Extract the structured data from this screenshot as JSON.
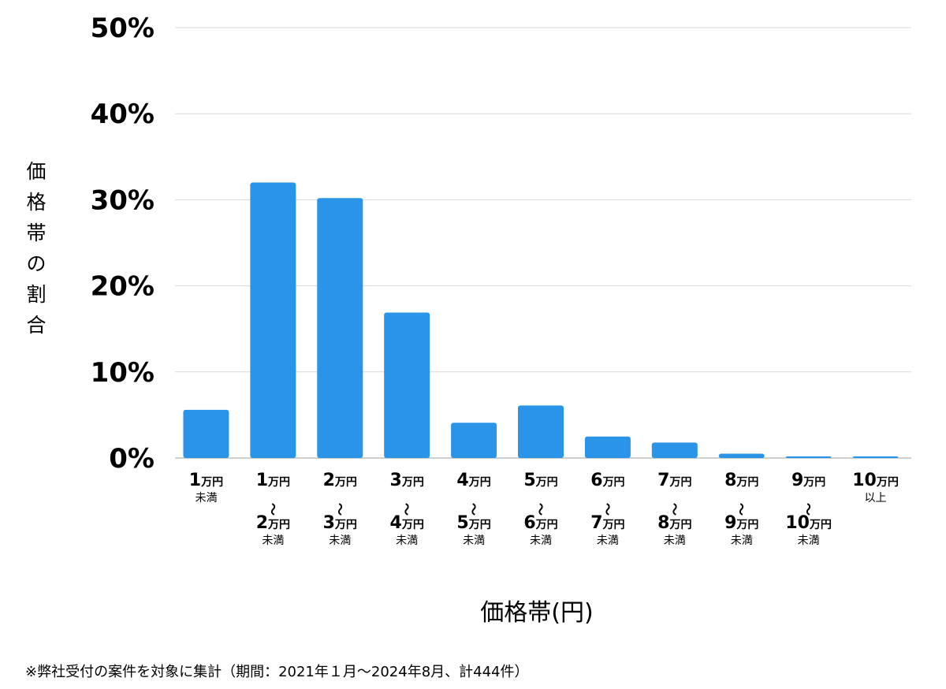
{
  "chart_data": {
    "type": "bar",
    "ylabel": "価格帯の割合",
    "xlabel": "価格帯(円)",
    "yticks": [
      "0%",
      "10%",
      "20%",
      "30%",
      "40%",
      "50%"
    ],
    "ylim": [
      0,
      50
    ],
    "grid": true,
    "bar_color": "#2a95e8",
    "categories": [
      {
        "lines": [
          {
            "num": "1",
            "unit": "万円"
          }
        ],
        "suffix": "未満"
      },
      {
        "lines": [
          {
            "num": "1",
            "unit": "万円"
          },
          {
            "num": "2",
            "unit": "万円"
          }
        ],
        "separator": "〜",
        "suffix": "未満"
      },
      {
        "lines": [
          {
            "num": "2",
            "unit": "万円"
          },
          {
            "num": "3",
            "unit": "万円"
          }
        ],
        "separator": "〜",
        "suffix": "未満"
      },
      {
        "lines": [
          {
            "num": "3",
            "unit": "万円"
          },
          {
            "num": "4",
            "unit": "万円"
          }
        ],
        "separator": "〜",
        "suffix": "未満"
      },
      {
        "lines": [
          {
            "num": "4",
            "unit": "万円"
          },
          {
            "num": "5",
            "unit": "万円"
          }
        ],
        "separator": "〜",
        "suffix": "未満"
      },
      {
        "lines": [
          {
            "num": "5",
            "unit": "万円"
          },
          {
            "num": "6",
            "unit": "万円"
          }
        ],
        "separator": "〜",
        "suffix": "未満"
      },
      {
        "lines": [
          {
            "num": "6",
            "unit": "万円"
          },
          {
            "num": "7",
            "unit": "万円"
          }
        ],
        "separator": "〜",
        "suffix": "未満"
      },
      {
        "lines": [
          {
            "num": "7",
            "unit": "万円"
          },
          {
            "num": "8",
            "unit": "万円"
          }
        ],
        "separator": "〜",
        "suffix": "未満"
      },
      {
        "lines": [
          {
            "num": "8",
            "unit": "万円"
          },
          {
            "num": "9",
            "unit": "万円"
          }
        ],
        "separator": "〜",
        "suffix": "未満"
      },
      {
        "lines": [
          {
            "num": "9",
            "unit": "万円"
          },
          {
            "num": "10",
            "unit": "万円"
          }
        ],
        "separator": "〜",
        "suffix": "未満"
      },
      {
        "lines": [
          {
            "num": "10",
            "unit": "万円"
          }
        ],
        "suffix": "以上"
      }
    ],
    "values": [
      5.6,
      32.0,
      30.2,
      16.9,
      4.1,
      6.1,
      2.5,
      1.8,
      0.5,
      0.2,
      0.2
    ]
  },
  "footnote": "※弊社受付の案件を対象に集計（期間：2021年１月〜2024年8月、計444件）"
}
